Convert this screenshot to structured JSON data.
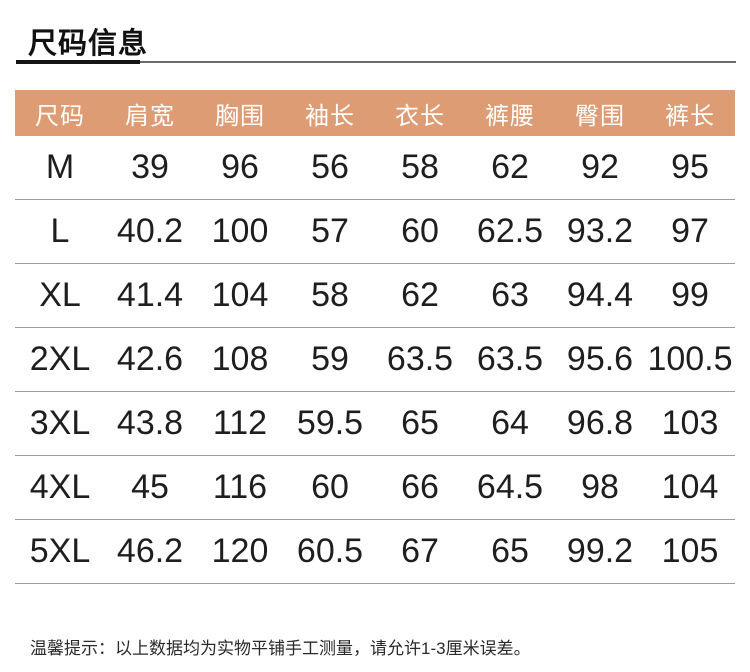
{
  "page": {
    "title": "尺码信息",
    "tip": "温馨提示：以上数据均为实物平铺手工测量，请允许1-3厘米误差。"
  },
  "colors": {
    "header_bg": "#DD9C73",
    "header_text": "#FFFFFF",
    "divider": "#9C9C9C",
    "title_accent": "#151515",
    "title_rule": "#6B6B6B"
  },
  "size_table": {
    "columns": [
      "尺码",
      "肩宽",
      "胸围",
      "袖长",
      "衣长",
      "裤腰",
      "臀围",
      "裤长"
    ],
    "rows": [
      {
        "size": "M",
        "values": [
          "39",
          "96",
          "56",
          "58",
          "62",
          "92",
          "95"
        ]
      },
      {
        "size": "L",
        "values": [
          "40.2",
          "100",
          "57",
          "60",
          "62.5",
          "93.2",
          "97"
        ]
      },
      {
        "size": "XL",
        "values": [
          "41.4",
          "104",
          "58",
          "62",
          "63",
          "94.4",
          "99"
        ]
      },
      {
        "size": "2XL",
        "values": [
          "42.6",
          "108",
          "59",
          "63.5",
          "63.5",
          "95.6",
          "100.5"
        ]
      },
      {
        "size": "3XL",
        "values": [
          "43.8",
          "112",
          "59.5",
          "65",
          "64",
          "96.8",
          "103"
        ]
      },
      {
        "size": "4XL",
        "values": [
          "45",
          "116",
          "60",
          "66",
          "64.5",
          "98",
          "104"
        ]
      },
      {
        "size": "5XL",
        "values": [
          "46.2",
          "120",
          "60.5",
          "67",
          "65",
          "99.2",
          "105"
        ]
      }
    ]
  }
}
